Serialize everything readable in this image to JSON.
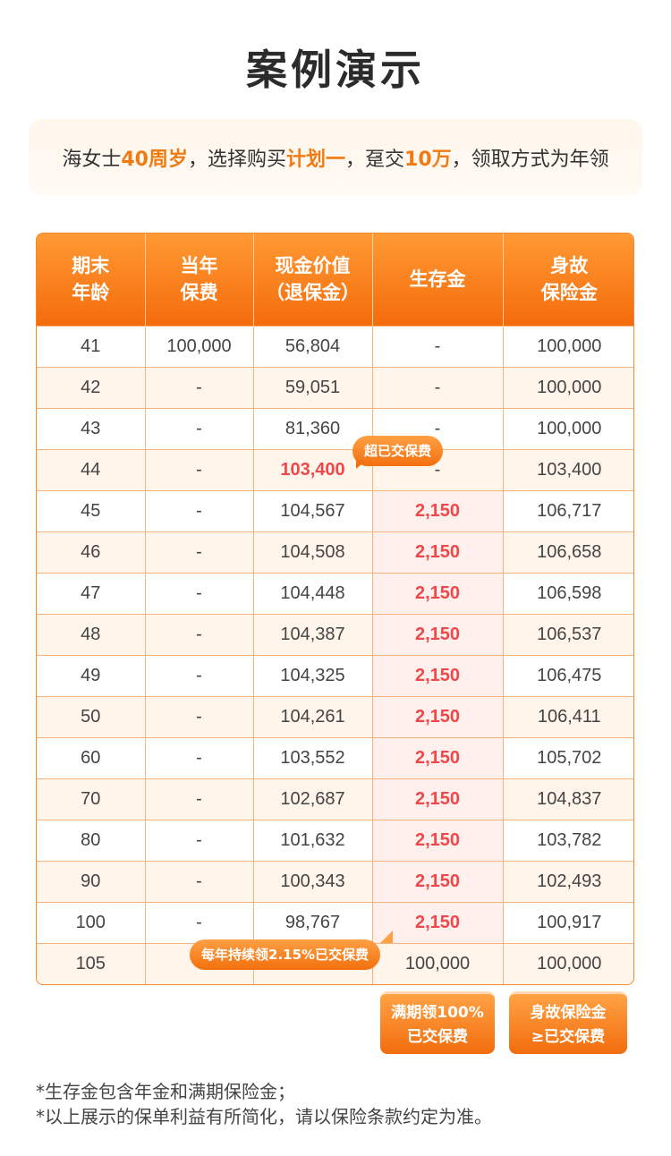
{
  "title": "案例演示",
  "case": {
    "p1": "海女士",
    "age": "40周岁",
    "p2": "，选择购买",
    "plan": "计划一",
    "p3": "，趸交",
    "amount": "10万",
    "p4": "，领取方式为年领"
  },
  "table": {
    "headers": [
      [
        "期末",
        "年龄"
      ],
      [
        "当年",
        "保费"
      ],
      [
        "现金价值",
        "（退保金）"
      ],
      [
        "生存金"
      ],
      [
        "身故",
        "保险金"
      ]
    ],
    "rows": [
      [
        "41",
        "100,000",
        "56,804",
        "-",
        "100,000"
      ],
      [
        "42",
        "-",
        "59,051",
        "-",
        "100,000"
      ],
      [
        "43",
        "-",
        "81,360",
        "-",
        "100,000"
      ],
      [
        "44",
        "-",
        "103,400",
        "-",
        "103,400"
      ],
      [
        "45",
        "-",
        "104,567",
        "2,150",
        "106,717"
      ],
      [
        "46",
        "-",
        "104,508",
        "2,150",
        "106,658"
      ],
      [
        "47",
        "-",
        "104,448",
        "2,150",
        "106,598"
      ],
      [
        "48",
        "-",
        "104,387",
        "2,150",
        "106,537"
      ],
      [
        "49",
        "-",
        "104,325",
        "2,150",
        "106,475"
      ],
      [
        "50",
        "-",
        "104,261",
        "2,150",
        "106,411"
      ],
      [
        "60",
        "-",
        "103,552",
        "2,150",
        "105,702"
      ],
      [
        "70",
        "-",
        "102,687",
        "2,150",
        "104,837"
      ],
      [
        "80",
        "-",
        "101,632",
        "2,150",
        "103,782"
      ],
      [
        "90",
        "-",
        "100,343",
        "2,150",
        "102,493"
      ],
      [
        "100",
        "-",
        "98,767",
        "2,150",
        "100,917"
      ],
      [
        "105",
        "",
        "",
        "100,000",
        "100,000"
      ]
    ]
  },
  "bubbles": {
    "exceed": "超已交保费",
    "annual": "每年持续领2.15%已交保费"
  },
  "tags": {
    "maturity": [
      "满期领100%",
      "已交保费"
    ],
    "death": [
      "身故保险金",
      "≥已交保费"
    ]
  },
  "notes": [
    "*生存金包含年金和满期保险金；",
    "*以上展示的保单利益有所简化，请以保险条款约定为准。"
  ],
  "colors": {
    "accent": "#f07b12",
    "highlight": "#f0484a",
    "header": "#f56b0c"
  }
}
